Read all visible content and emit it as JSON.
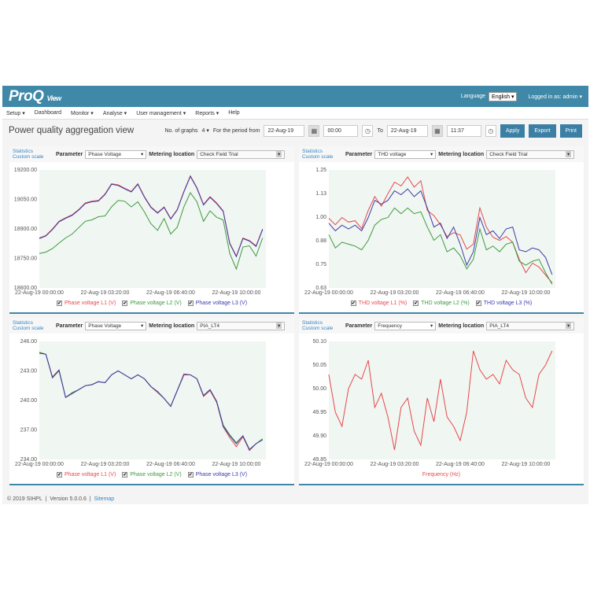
{
  "header": {
    "logo": "ProQ",
    "logo_sub": "View",
    "language_label": "Language",
    "language_value": "English",
    "logged_in": "Logged in as: admin"
  },
  "menu": [
    "Setup",
    "Dashboard",
    "Monitor",
    "Analyse",
    "User management",
    "Reports",
    "Help"
  ],
  "menu_dropdown": [
    true,
    false,
    true,
    true,
    true,
    true,
    false
  ],
  "toolbar": {
    "title": "Power quality aggregation view",
    "graphs_label": "No. of graphs",
    "graphs_value": "4",
    "period_label": "For the period from",
    "from_date": "22-Aug-19",
    "from_time": "00:00",
    "to_label": "To",
    "to_date": "22-Aug-19",
    "to_time": "11:37",
    "apply": "Apply",
    "export": "Export",
    "print": "Print"
  },
  "panel_common": {
    "statistics": "Statistics",
    "custom_scale": "Custom scale",
    "parameter_label": "Parameter",
    "location_label": "Metering location"
  },
  "panels": [
    {
      "parameter": "Phase Voltage",
      "location": "Check Field Trial"
    },
    {
      "parameter": "THD voltage",
      "location": "Check Field Trial"
    },
    {
      "parameter": "Phase Voltage",
      "location": "PIA_LT4"
    },
    {
      "parameter": "Frequency",
      "location": "PIA_LT4"
    }
  ],
  "colors": {
    "L1": "#e8484c",
    "L2": "#3d9a40",
    "L3": "#3c3ca8",
    "plot_bg": "#f0f6f1",
    "header": "#3f88a8"
  },
  "chart_data": [
    {
      "type": "line",
      "ylim": [
        18600,
        19200
      ],
      "yticks": [
        "18600.00",
        "18750.00",
        "18900.00",
        "19050.00",
        "19200.00"
      ],
      "xticks": [
        "22-Aug-19 00:00:00",
        "22-Aug-19 03:20:00",
        "22-Aug-19 06:40:00",
        "22-Aug-19 10:00:00"
      ],
      "xlim": [
        "00:00",
        "11:30"
      ],
      "x": [
        "00:00",
        "00:20",
        "00:40",
        "01:00",
        "01:20",
        "01:40",
        "02:00",
        "02:20",
        "02:40",
        "03:00",
        "03:20",
        "03:40",
        "04:00",
        "04:20",
        "04:40",
        "05:00",
        "05:20",
        "05:40",
        "06:00",
        "06:20",
        "06:40",
        "07:00",
        "07:20",
        "07:40",
        "08:00",
        "08:20",
        "08:40",
        "09:00",
        "09:20",
        "09:40",
        "10:00",
        "10:20",
        "10:40",
        "11:00",
        "11:20"
      ],
      "series": [
        {
          "name": "Phase voltage L1 (V)",
          "key": "L1",
          "values": [
            18854,
            18867,
            18900,
            18939,
            18957,
            18972,
            18999,
            19032,
            19041,
            19045,
            19078,
            19130,
            19124,
            19107,
            19091,
            19130,
            19064,
            19012,
            18983,
            19012,
            18953,
            18999,
            19091,
            19170,
            19110,
            19025,
            19064,
            19032,
            18992,
            18828,
            18762,
            18854,
            18841,
            18814,
            18900
          ]
        },
        {
          "name": "Phase voltage L2 (V)",
          "key": "L2",
          "values": [
            18775,
            18782,
            18800,
            18828,
            18854,
            18874,
            18907,
            18939,
            18946,
            18962,
            18966,
            19012,
            19045,
            19041,
            19012,
            19038,
            18986,
            18926,
            18893,
            18953,
            18874,
            18909,
            19012,
            19084,
            19038,
            18939,
            18992,
            18959,
            18946,
            18775,
            18696,
            18808,
            18814,
            18762,
            18854
          ]
        },
        {
          "name": "Phase voltage L3 (V)",
          "key": "L3",
          "values": [
            18851,
            18864,
            18897,
            18936,
            18954,
            18969,
            18996,
            19029,
            19038,
            19042,
            19075,
            19127,
            19121,
            19104,
            19088,
            19127,
            19061,
            19009,
            18980,
            19009,
            18950,
            18996,
            19088,
            19167,
            19107,
            19022,
            19061,
            19029,
            18989,
            18825,
            18759,
            18851,
            18838,
            18811,
            18897
          ]
        }
      ]
    },
    {
      "type": "line",
      "ylim": [
        0.63,
        1.25
      ],
      "yticks": [
        "0.63",
        "0.75",
        "0.88",
        "1.00",
        "1.13",
        "1.25"
      ],
      "xticks": [
        "22-Aug-19 00:00:00",
        "22-Aug-19 03:20:00",
        "22-Aug-19 06:40:00",
        "22-Aug-19 10:00:00"
      ],
      "xlim": [
        "00:00",
        "11:30"
      ],
      "x": [
        "00:00",
        "00:20",
        "00:40",
        "01:00",
        "01:20",
        "01:40",
        "02:00",
        "02:20",
        "02:40",
        "03:00",
        "03:20",
        "03:40",
        "04:00",
        "04:20",
        "04:40",
        "05:00",
        "05:20",
        "05:40",
        "06:00",
        "06:20",
        "06:40",
        "07:00",
        "07:20",
        "07:40",
        "08:00",
        "08:20",
        "08:40",
        "09:00",
        "09:20",
        "09:40",
        "10:00",
        "10:20",
        "10:40",
        "11:00",
        "11:20"
      ],
      "series": [
        {
          "name": "THD voltage L1 (%)",
          "key": "L1",
          "values": [
            0.996,
            0.962,
            1.0,
            0.976,
            0.983,
            0.942,
            1.037,
            1.11,
            1.06,
            1.125,
            1.186,
            1.166,
            1.213,
            1.16,
            1.193,
            1.037,
            1.01,
            0.962,
            0.9,
            0.92,
            0.908,
            0.834,
            0.86,
            1.05,
            0.95,
            0.896,
            0.88,
            0.9,
            0.87,
            0.78,
            0.71,
            0.76,
            0.74,
            0.698,
            0.657
          ]
        },
        {
          "name": "THD voltage L2 (%)",
          "key": "L2",
          "values": [
            0.91,
            0.84,
            0.87,
            0.86,
            0.85,
            0.83,
            0.88,
            0.96,
            0.99,
            1.0,
            1.05,
            1.02,
            1.05,
            1.02,
            1.03,
            0.95,
            0.88,
            0.91,
            0.82,
            0.84,
            0.8,
            0.73,
            0.78,
            0.94,
            0.83,
            0.85,
            0.82,
            0.86,
            0.87,
            0.77,
            0.75,
            0.77,
            0.78,
            0.71,
            0.65
          ]
        },
        {
          "name": "THD voltage L3 (%)",
          "key": "L3",
          "values": [
            0.97,
            0.93,
            0.96,
            0.94,
            0.96,
            0.93,
            1.0,
            1.09,
            1.07,
            1.09,
            1.14,
            1.12,
            1.15,
            1.11,
            1.14,
            1.05,
            0.95,
            0.97,
            0.89,
            0.95,
            0.86,
            0.75,
            0.82,
            1.0,
            0.91,
            0.93,
            0.89,
            0.94,
            0.95,
            0.83,
            0.82,
            0.84,
            0.83,
            0.79,
            0.7
          ]
        }
      ]
    },
    {
      "type": "line",
      "ylim": [
        234,
        246
      ],
      "yticks": [
        "234.00",
        "237.00",
        "240.00",
        "243.00",
        "246.00"
      ],
      "xticks": [
        "22-Aug-19 00:00:00",
        "22-Aug-19 03:20:00",
        "22-Aug-19 06:40:00",
        "22-Aug-19 10:00:00"
      ],
      "xlim": [
        "00:00",
        "11:30"
      ],
      "x": [
        "00:00",
        "00:20",
        "00:40",
        "01:00",
        "01:20",
        "01:40",
        "02:00",
        "02:20",
        "02:40",
        "03:00",
        "03:20",
        "03:40",
        "04:00",
        "04:20",
        "04:40",
        "05:00",
        "05:20",
        "05:40",
        "06:00",
        "06:20",
        "06:40",
        "07:00",
        "07:20",
        "07:40",
        "08:00",
        "08:20",
        "08:40",
        "09:00",
        "09:20",
        "09:40",
        "10:00",
        "10:20",
        "10:40",
        "11:00",
        "11:20"
      ],
      "series": [
        {
          "name": "Phase voltage L1 (V)",
          "key": "L1",
          "values": [
            244.8,
            244.7,
            242.4,
            243.1,
            240.3,
            240.7,
            241.1,
            241.5,
            241.6,
            241.9,
            241.8,
            242.6,
            243.0,
            242.6,
            242.2,
            242.6,
            242.2,
            241.4,
            240.8,
            240.2,
            239.4,
            241.0,
            242.7,
            242.6,
            242.2,
            240.4,
            241.0,
            239.8,
            237.3,
            236.2,
            235.3,
            236.3,
            234.9,
            235.6,
            236.0
          ]
        },
        {
          "name": "Phase voltage L2 (V)",
          "key": "L2",
          "values": [
            244.9,
            244.7,
            242.3,
            243.0,
            240.3,
            240.8,
            241.1,
            241.5,
            241.6,
            241.9,
            241.8,
            242.6,
            243.0,
            242.6,
            242.2,
            242.6,
            242.2,
            241.4,
            240.9,
            240.2,
            239.4,
            241.0,
            242.6,
            242.6,
            242.2,
            240.5,
            241.1,
            239.9,
            237.5,
            236.5,
            235.7,
            236.4,
            235.0,
            235.6,
            236.1
          ]
        },
        {
          "name": "Phase voltage L3 (V)",
          "key": "L3",
          "values": [
            244.8,
            244.7,
            242.3,
            243.1,
            240.3,
            240.7,
            241.1,
            241.5,
            241.6,
            241.9,
            241.8,
            242.6,
            243.0,
            242.6,
            242.2,
            242.6,
            242.2,
            241.4,
            240.9,
            240.2,
            239.4,
            241.0,
            242.6,
            242.6,
            242.2,
            240.5,
            241.1,
            239.9,
            237.4,
            236.4,
            235.6,
            236.4,
            235.0,
            235.6,
            236.0
          ]
        }
      ]
    },
    {
      "type": "line",
      "ylim": [
        49.85,
        50.1
      ],
      "yticks": [
        "49.85",
        "49.90",
        "49.95",
        "50.00",
        "50.05",
        "50.10"
      ],
      "xticks": [
        "22-Aug-19 00:00:00",
        "22-Aug-19 03:20:00",
        "22-Aug-19 06:40:00",
        "22-Aug-19 10:00:00"
      ],
      "xlim": [
        "00:00",
        "11:30"
      ],
      "x": [
        "00:00",
        "00:20",
        "00:40",
        "01:00",
        "01:20",
        "01:40",
        "02:00",
        "02:20",
        "02:40",
        "03:00",
        "03:20",
        "03:40",
        "04:00",
        "04:20",
        "04:40",
        "05:00",
        "05:20",
        "05:40",
        "06:00",
        "06:20",
        "06:40",
        "07:00",
        "07:20",
        "07:40",
        "08:00",
        "08:20",
        "08:40",
        "09:00",
        "09:20",
        "09:40",
        "10:00",
        "10:20",
        "10:40",
        "11:00",
        "11:20"
      ],
      "series": [
        {
          "name": "Frequency (Hz)",
          "key": "L1",
          "values": [
            50.03,
            49.95,
            49.92,
            50.0,
            50.03,
            50.02,
            50.06,
            49.96,
            49.99,
            49.94,
            49.87,
            49.96,
            49.98,
            49.91,
            49.88,
            49.98,
            49.93,
            50.02,
            49.94,
            49.92,
            49.89,
            49.95,
            50.08,
            50.04,
            50.02,
            50.03,
            50.01,
            50.06,
            50.04,
            50.03,
            49.98,
            49.96,
            50.03,
            50.05,
            50.08
          ]
        }
      ]
    }
  ],
  "footer": {
    "copyright": "© 2019 SIHPL",
    "version": "Version 5.0.0.6",
    "sitemap": "Sitemap"
  }
}
